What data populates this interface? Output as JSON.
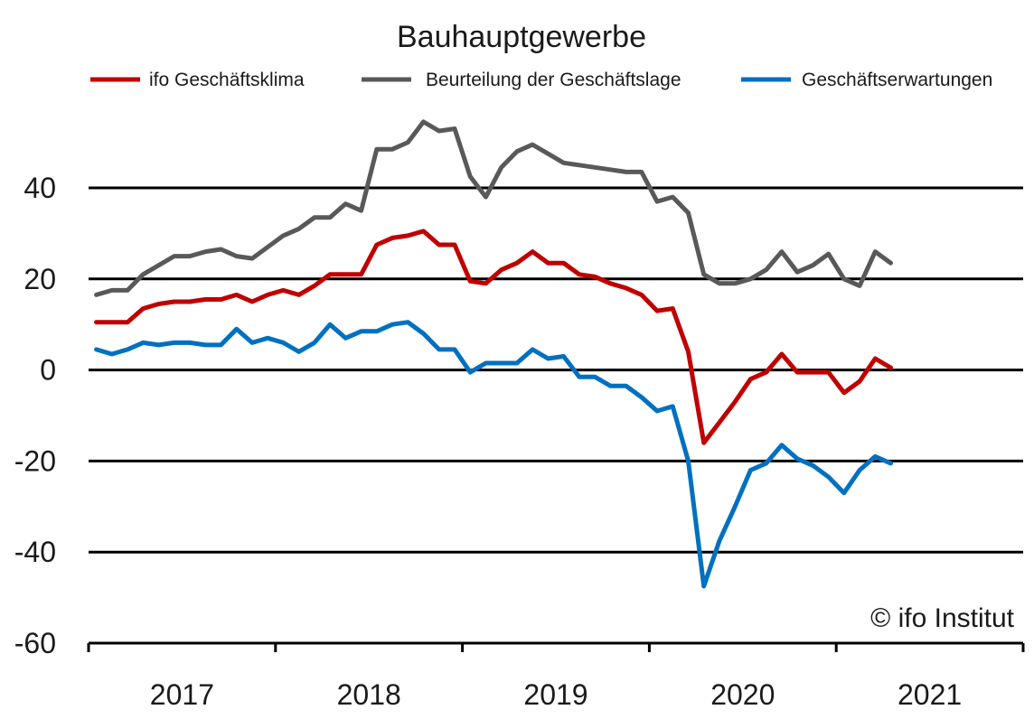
{
  "chart_data": {
    "type": "line",
    "title": "Bauhauptgewerbe",
    "xlabel": "",
    "ylabel": "",
    "ylim": [
      -60,
      60
    ],
    "yticks": [
      40,
      20,
      0,
      -20,
      -40,
      -60
    ],
    "year_labels": [
      "2017",
      "2018",
      "2019",
      "2020",
      "2021"
    ],
    "x_start": "2017-01",
    "x_end": "2021-12",
    "grid": true,
    "legend_position": "top",
    "copyright": "© ifo Institut",
    "series": [
      {
        "name": "ifo Geschäftsklima",
        "color": "#c00000",
        "start": "2017-01",
        "values": [
          10.5,
          10.5,
          10.5,
          13.5,
          14.5,
          15,
          15,
          15.5,
          15.5,
          16.5,
          15,
          16.5,
          17.5,
          16.5,
          18.5,
          21,
          21,
          21,
          27.5,
          29,
          29.5,
          30.5,
          27.5,
          27.5,
          19.5,
          19,
          22,
          23.5,
          26,
          23.5,
          23.5,
          21,
          20.5,
          19,
          18,
          16.5,
          13,
          13.5,
          4,
          -16,
          -11.5,
          -7,
          -2,
          -0.5,
          3.5,
          -0.5,
          -0.5,
          -0.5,
          -5,
          -2.5,
          2.5,
          0.5
        ]
      },
      {
        "name": "Beurteilung der Geschäftslage",
        "color": "#595959",
        "start": "2017-01",
        "values": [
          16.5,
          17.5,
          17.5,
          21,
          23,
          25,
          25,
          26,
          26.5,
          25,
          24.5,
          27,
          29.5,
          31,
          33.5,
          33.5,
          36.5,
          35,
          48.5,
          48.5,
          50,
          54.5,
          52.5,
          53,
          42.5,
          38,
          44.5,
          48,
          49.5,
          47.5,
          45.5,
          45,
          44.5,
          44,
          43.5,
          43.5,
          37,
          38,
          34.5,
          21,
          19,
          19,
          20,
          22,
          26,
          21.5,
          23,
          25.5,
          20,
          18.5,
          26,
          23.5
        ]
      },
      {
        "name": "Geschäftserwartungen",
        "color": "#0070c0",
        "start": "2017-01",
        "values": [
          4.5,
          3.5,
          4.5,
          6,
          5.5,
          6,
          6,
          5.5,
          5.5,
          9,
          6,
          7,
          6,
          4,
          6,
          10,
          7,
          8.5,
          8.5,
          10,
          10.5,
          8,
          4.5,
          4.5,
          -0.5,
          1.5,
          1.5,
          1.5,
          4.5,
          2.5,
          3,
          -1.5,
          -1.5,
          -3.5,
          -3.5,
          -6,
          -9,
          -8,
          -20,
          -47.5,
          -37.5,
          -30,
          -22,
          -20.5,
          -16.5,
          -19.5,
          -21,
          -23.5,
          -27,
          -22,
          -19,
          -20.5
        ]
      }
    ]
  }
}
